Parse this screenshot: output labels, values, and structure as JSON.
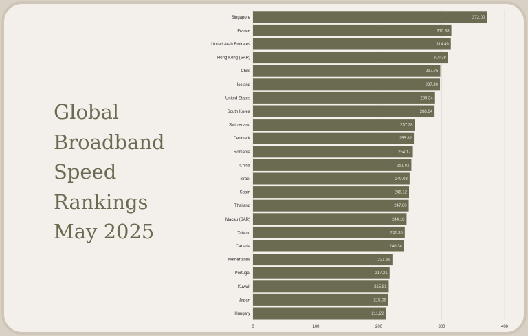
{
  "title_lines": [
    "Global",
    "Broadband",
    "Speed",
    "Rankings",
    "May 2025"
  ],
  "colors": {
    "bar": "#6b6b52",
    "background": "#f3efea",
    "frame": "#cfc6b8",
    "title": "#6a6b52"
  },
  "chart_data": {
    "type": "bar",
    "orientation": "horizontal",
    "title": "Global Broadband Speed Rankings May 2025",
    "xlabel": "",
    "ylabel": "",
    "xlim": [
      0,
      400
    ],
    "xticks": [
      0,
      100,
      200,
      300,
      400
    ],
    "grid": "vertical gridlines",
    "categories": [
      "Singapore",
      "France",
      "United Arab Emirates",
      "Hong Kong (SAR)",
      "Chile",
      "Iceland",
      "United States",
      "South Korea",
      "Switzerland",
      "Denmark",
      "Romania",
      "China",
      "Israel",
      "Spain",
      "Thailand",
      "Macau (SAR)",
      "Taiwan",
      "Canada",
      "Netherlands",
      "Portugal",
      "Kuwait",
      "Japan",
      "Hungary"
    ],
    "values": [
      372.0,
      315.38,
      314.49,
      310.28,
      297.75,
      297.3,
      289.34,
      288.64,
      257.38,
      255.82,
      254.17,
      251.82,
      249.03,
      248.12,
      247.6,
      244.18,
      241.35,
      240.34,
      221.69,
      217.21,
      215.81,
      215.06,
      211.22
    ],
    "value_labels": [
      "372.00",
      "315.38",
      "314.49",
      "310.28",
      "297.75",
      "297.30",
      "289.34",
      "288.64",
      "257.38",
      "255.82",
      "254.17",
      "251.82",
      "249.03",
      "248.12",
      "247.60",
      "244.18",
      "241.35",
      "240.34",
      "221.69",
      "217.21",
      "215.81",
      "215.06",
      "211.22"
    ]
  }
}
